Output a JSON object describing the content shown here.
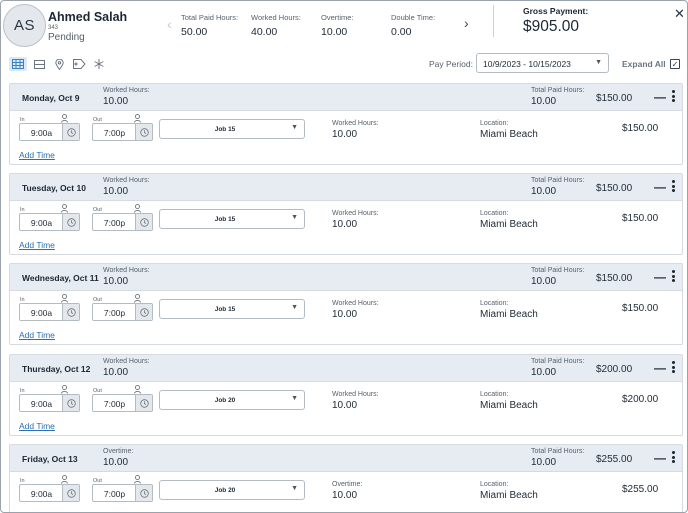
{
  "employee": {
    "initials": "AS",
    "name": "Ahmed Salah",
    "id": "343",
    "status": "Pending"
  },
  "header_stats": [
    {
      "label": "Total Paid Hours:",
      "value": "50.00"
    },
    {
      "label": "Worked Hours:",
      "value": "40.00"
    },
    {
      "label": "Overtime:",
      "value": "10.00"
    },
    {
      "label": "Double Time:",
      "value": "0.00"
    }
  ],
  "gross": {
    "label": "Gross Payment:",
    "value": "$905.00"
  },
  "toolbar": {
    "icons": [
      "calendar-grid-icon",
      "list-view-icon",
      "location-pin-icon",
      "tag-icon",
      "snowflake-icon"
    ],
    "pay_period_label": "Pay Period:",
    "pay_period_value": "10/9/2023 - 10/15/2023",
    "expand_all_label": "Expand All",
    "expand_all_checked": true
  },
  "labels": {
    "in": "In",
    "out": "Out",
    "worked_hours": "Worked Hours:",
    "total_paid_hours": "Total Paid Hours:",
    "location": "Location:",
    "add_time": "Add Time"
  },
  "days": [
    {
      "title": "Monday, Oct 9",
      "head_label": "Worked Hours:",
      "head_hours": "10.00",
      "total_paid": "10.00",
      "pay": "$150.00",
      "in_time": "9:00a",
      "out_time": "7:00p",
      "job": "Job 15",
      "body_label": "Worked Hours:",
      "body_hours": "10.00",
      "location": "Miami Beach",
      "entry_pay": "$150.00"
    },
    {
      "title": "Tuesday, Oct 10",
      "head_label": "Worked Hours:",
      "head_hours": "10.00",
      "total_paid": "10.00",
      "pay": "$150.00",
      "in_time": "9:00a",
      "out_time": "7:00p",
      "job": "Job 15",
      "body_label": "Worked Hours:",
      "body_hours": "10.00",
      "location": "Miami Beach",
      "entry_pay": "$150.00"
    },
    {
      "title": "Wednesday, Oct 11",
      "head_label": "Worked Hours:",
      "head_hours": "10.00",
      "total_paid": "10.00",
      "pay": "$150.00",
      "in_time": "9:00a",
      "out_time": "7:00p",
      "job": "Job 15",
      "body_label": "Worked Hours:",
      "body_hours": "10.00",
      "location": "Miami Beach",
      "entry_pay": "$150.00"
    },
    {
      "title": "Thursday, Oct 12",
      "head_label": "Worked Hours:",
      "head_hours": "10.00",
      "total_paid": "10.00",
      "pay": "$200.00",
      "in_time": "9:00a",
      "out_time": "7:00p",
      "job": "Job 20",
      "body_label": "Worked Hours:",
      "body_hours": "10.00",
      "location": "Miami Beach",
      "entry_pay": "$200.00"
    },
    {
      "title": "Friday, Oct 13",
      "head_label": "Overtime:",
      "head_hours": "10.00",
      "total_paid": "10.00",
      "pay": "$255.00",
      "in_time": "9:00a",
      "out_time": "7:00p",
      "job": "Job 20",
      "body_label": "Overtime:",
      "body_hours": "10.00",
      "location": "Miami Beach",
      "entry_pay": "$255.00"
    }
  ],
  "colors": {
    "accent": "#2a6fb5",
    "header_band": "#e6ecf1",
    "text": "#1e2a36"
  }
}
